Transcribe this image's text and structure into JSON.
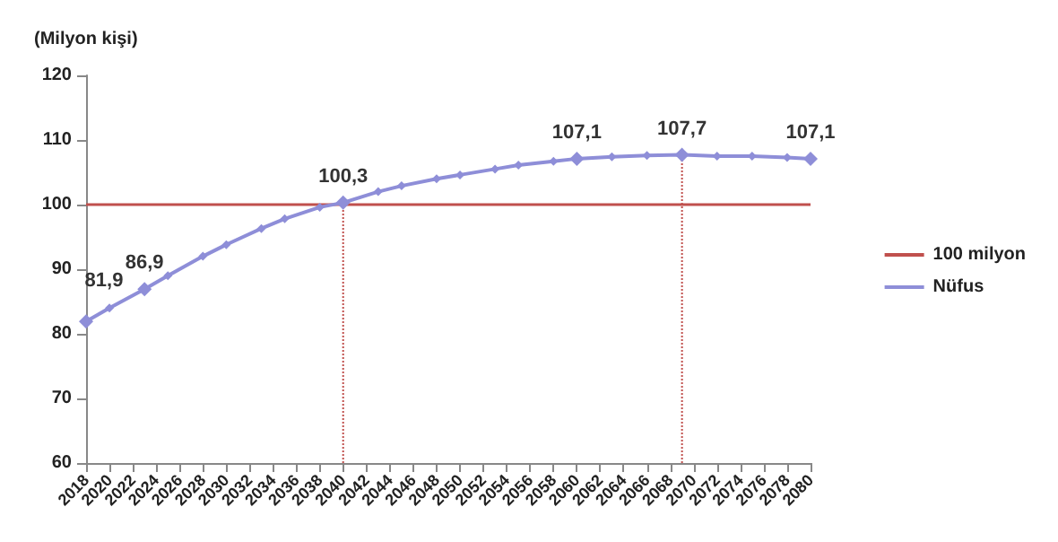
{
  "chart_data": {
    "type": "line",
    "ylabel": "(Milyon kişi)",
    "xlim": [
      2018,
      2080
    ],
    "xticks": [
      2018,
      2020,
      2022,
      2024,
      2026,
      2028,
      2030,
      2032,
      2034,
      2036,
      2038,
      2040,
      2042,
      2044,
      2046,
      2048,
      2050,
      2052,
      2054,
      2056,
      2058,
      2060,
      2062,
      2064,
      2066,
      2068,
      2070,
      2072,
      2074,
      2076,
      2078,
      2080
    ],
    "ylim": [
      60,
      120
    ],
    "yticks": [
      60,
      70,
      80,
      90,
      100,
      110,
      120
    ],
    "grid": false,
    "legend": "right",
    "marker": "diamond",
    "line_style": "solid",
    "series": [
      {
        "name": "100 milyon",
        "color": "#c0504d",
        "x": [
          2018,
          2080
        ],
        "values": [
          100,
          100
        ],
        "marker": "none"
      },
      {
        "name": "Nüfus",
        "color": "#8e8ed8",
        "x": [
          2018,
          2020,
          2023,
          2025,
          2028,
          2030,
          2033,
          2035,
          2038,
          2040,
          2043,
          2045,
          2048,
          2050,
          2053,
          2055,
          2058,
          2060,
          2063,
          2066,
          2069,
          2072,
          2075,
          2078,
          2080
        ],
        "values": [
          81.9,
          84,
          86.9,
          89,
          92,
          93.8,
          96.3,
          97.8,
          99.6,
          100.3,
          102,
          102.9,
          104,
          104.6,
          105.5,
          106.1,
          106.7,
          107.1,
          107.4,
          107.6,
          107.7,
          107.5,
          107.5,
          107.3,
          107.1
        ],
        "value_labels": [
          "81,9",
          null,
          "86,9",
          null,
          null,
          null,
          null,
          null,
          null,
          "100,3",
          null,
          null,
          null,
          null,
          null,
          null,
          null,
          "107,1",
          null,
          null,
          "107,7",
          null,
          null,
          null,
          "107,1"
        ]
      }
    ],
    "ref_lines": [
      {
        "axis": "x",
        "value": 2040,
        "color": "#c0504d",
        "line_style": "dotted"
      },
      {
        "axis": "x",
        "value": 2069,
        "color": "#c0504d",
        "line_style": "dotted"
      }
    ]
  }
}
